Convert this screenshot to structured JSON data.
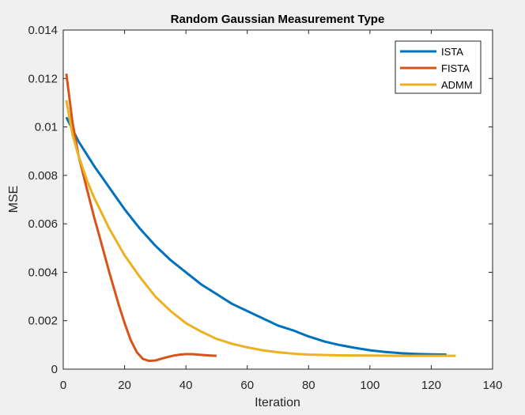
{
  "chart_data": {
    "type": "line",
    "title": "Random Gaussian Measurement Type",
    "xlabel": "Iteration",
    "ylabel": "MSE",
    "xlim": [
      0,
      140
    ],
    "ylim": [
      0,
      0.014
    ],
    "xticks": [
      0,
      20,
      40,
      60,
      80,
      100,
      120,
      140
    ],
    "xtick_labels": [
      "0",
      "20",
      "40",
      "60",
      "80",
      "100",
      "120",
      "140"
    ],
    "yticks": [
      0,
      0.002,
      0.004,
      0.006,
      0.008,
      0.01,
      0.012,
      0.014
    ],
    "ytick_labels": [
      "0",
      "0.002",
      "0.004",
      "0.006",
      "0.008",
      "0.01",
      "0.012",
      "0.014"
    ],
    "grid": false,
    "legend_position": "top-right",
    "series": [
      {
        "name": "ISTA",
        "color": "#0072BD",
        "x": [
          1,
          5,
          10,
          15,
          20,
          25,
          30,
          35,
          40,
          45,
          50,
          55,
          60,
          65,
          70,
          75,
          80,
          85,
          90,
          95,
          100,
          105,
          110,
          115,
          120,
          125
        ],
        "y": [
          0.0104,
          0.0094,
          0.0084,
          0.0075,
          0.0066,
          0.0058,
          0.0051,
          0.0045,
          0.004,
          0.0035,
          0.0031,
          0.0027,
          0.0024,
          0.0021,
          0.0018,
          0.0016,
          0.00135,
          0.00115,
          0.001,
          0.00088,
          0.00078,
          0.00071,
          0.00066,
          0.00063,
          0.00061,
          0.0006
        ]
      },
      {
        "name": "FISTA",
        "color": "#D95319",
        "x": [
          1,
          3,
          5,
          8,
          10,
          12,
          15,
          18,
          20,
          22,
          24,
          26,
          28,
          30,
          32,
          34,
          36,
          38,
          40,
          42,
          44,
          46,
          48,
          50
        ],
        "y": [
          0.0122,
          0.0102,
          0.0088,
          0.0073,
          0.0063,
          0.0054,
          0.004,
          0.0027,
          0.0019,
          0.0012,
          0.0007,
          0.00042,
          0.00034,
          0.00036,
          0.00043,
          0.0005,
          0.00056,
          0.0006,
          0.00062,
          0.00062,
          0.0006,
          0.00058,
          0.00056,
          0.00055
        ]
      },
      {
        "name": "ADMM",
        "color": "#EDB120",
        "x": [
          1,
          3,
          5,
          8,
          10,
          15,
          20,
          25,
          30,
          35,
          40,
          45,
          50,
          55,
          60,
          65,
          70,
          75,
          80,
          90,
          100,
          110,
          120,
          128
        ],
        "y": [
          0.0111,
          0.0097,
          0.0088,
          0.0077,
          0.0071,
          0.0058,
          0.0047,
          0.0038,
          0.003,
          0.0024,
          0.0019,
          0.00155,
          0.00125,
          0.00105,
          0.0009,
          0.00078,
          0.0007,
          0.00064,
          0.0006,
          0.00057,
          0.00056,
          0.00055,
          0.00055,
          0.00055
        ]
      }
    ]
  }
}
